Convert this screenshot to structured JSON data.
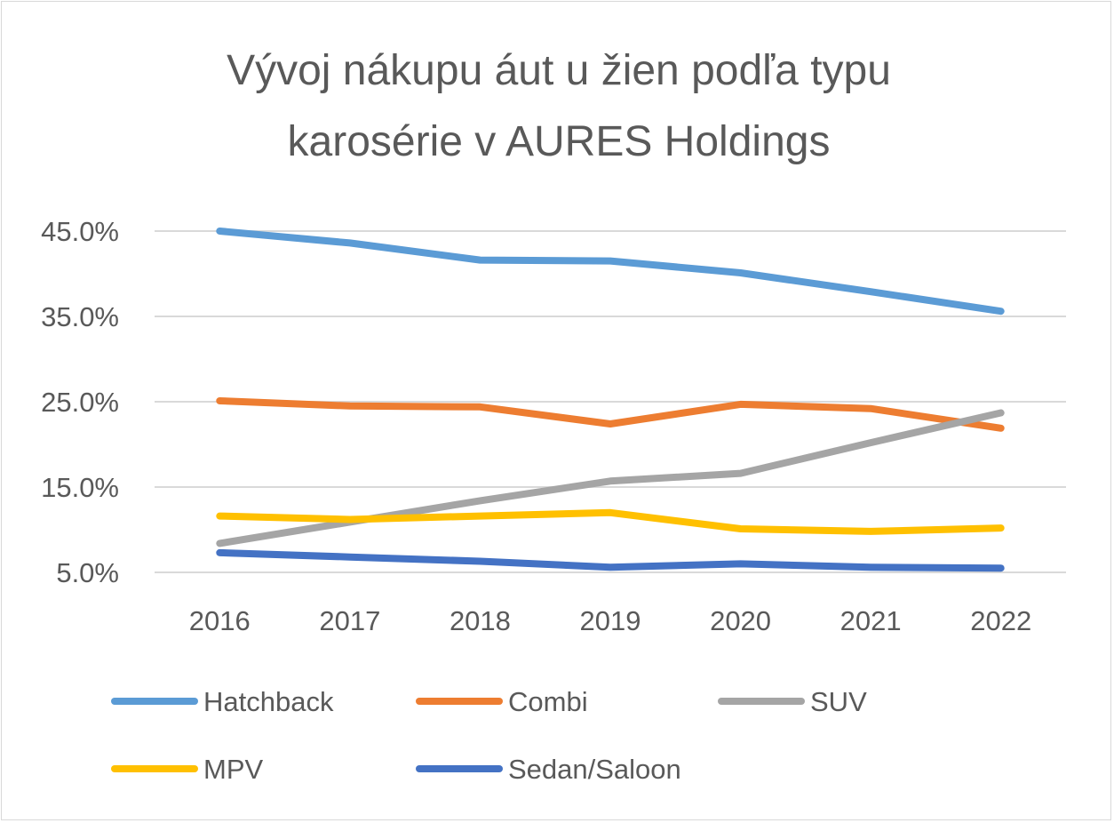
{
  "chart_data": {
    "type": "line",
    "title": "Vývoj nákupu áut u žien podľa typu karosérie v AURES Holdings",
    "title_lines": [
      "Vývoj nákupu áut u žien podľa typu",
      "karosérie v AURES Holdings"
    ],
    "xlabel": "",
    "ylabel": "",
    "categories": [
      "2016",
      "2017",
      "2018",
      "2019",
      "2020",
      "2021",
      "2022"
    ],
    "y_ticks": [
      45.0,
      35.0,
      25.0,
      15.0,
      5.0
    ],
    "y_tick_labels": [
      "45.0%",
      "35.0%",
      "25.0%",
      "15.0%",
      "5.0%"
    ],
    "ylim": [
      5.0,
      45.0
    ],
    "grid": true,
    "legend_position": "bottom",
    "series": [
      {
        "name": "Hatchback",
        "color": "#5b9bd5",
        "values": [
          45.0,
          43.6,
          41.6,
          41.5,
          40.1,
          37.9,
          35.6
        ]
      },
      {
        "name": "Combi",
        "color": "#ed7d31",
        "values": [
          25.1,
          24.5,
          24.4,
          22.4,
          24.7,
          24.2,
          21.9
        ]
      },
      {
        "name": "SUV",
        "color": "#a5a5a5",
        "values": [
          8.4,
          10.9,
          13.4,
          15.7,
          16.6,
          20.2,
          23.7
        ]
      },
      {
        "name": "MPV",
        "color": "#ffc000",
        "values": [
          11.6,
          11.2,
          11.6,
          12.0,
          10.1,
          9.8,
          10.2
        ]
      },
      {
        "name": "Sedan/Saloon",
        "color": "#4472c4",
        "values": [
          7.3,
          6.8,
          6.3,
          5.6,
          6.0,
          5.6,
          5.5
        ]
      }
    ]
  }
}
